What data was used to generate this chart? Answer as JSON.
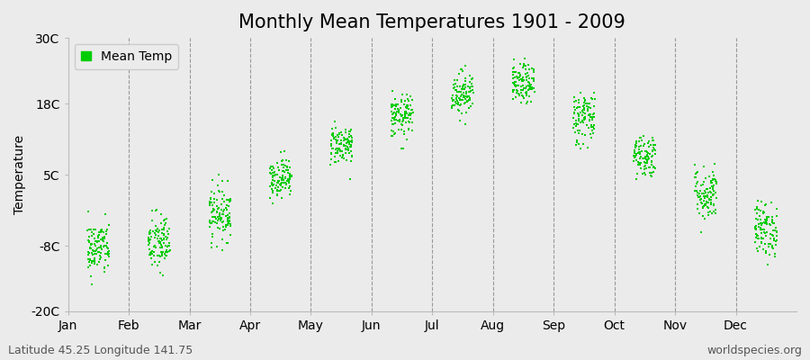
{
  "title": "Monthly Mean Temperatures 1901 - 2009",
  "ylabel": "Temperature",
  "yticks": [
    -20,
    -8,
    5,
    18,
    30
  ],
  "ytick_labels": [
    "-20C",
    "-8C",
    "5C",
    "18C",
    "30C"
  ],
  "ylim": [
    -20,
    30
  ],
  "months": [
    "Jan",
    "Feb",
    "Mar",
    "Apr",
    "May",
    "Jun",
    "Jul",
    "Aug",
    "Sep",
    "Oct",
    "Nov",
    "Dec"
  ],
  "month_means": [
    -8.5,
    -7.5,
    -2.0,
    4.5,
    10.5,
    15.5,
    20.0,
    21.5,
    15.5,
    8.5,
    1.5,
    -5.0
  ],
  "month_stds": [
    2.5,
    2.8,
    2.5,
    1.8,
    1.8,
    2.0,
    2.0,
    1.8,
    2.5,
    2.0,
    2.5,
    2.5
  ],
  "n_years": 109,
  "dot_color": "#00CC00",
  "dot_size": 2.5,
  "bg_color": "#EBEBEB",
  "dashed_line_color": "#999999",
  "legend_label": "Mean Temp",
  "footer_left": "Latitude 45.25 Longitude 141.75",
  "footer_right": "worldspecies.org",
  "title_fontsize": 15,
  "axis_fontsize": 10,
  "footer_fontsize": 9
}
